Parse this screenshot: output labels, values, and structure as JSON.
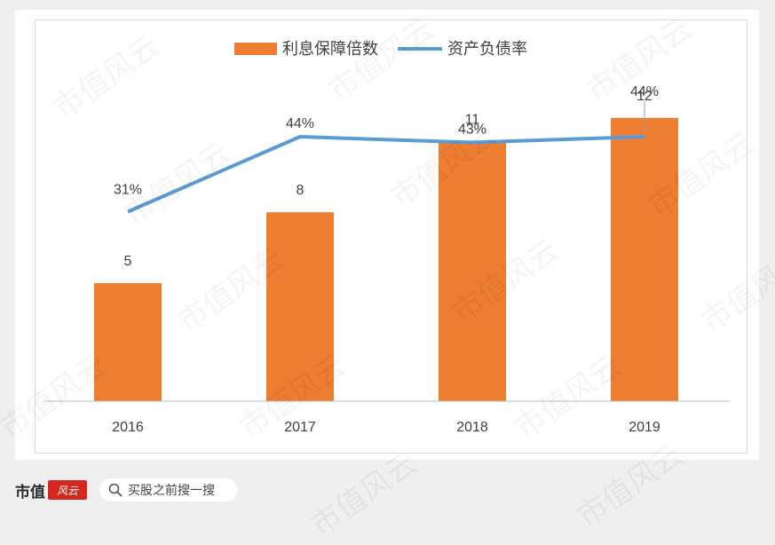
{
  "footer": {
    "brand": "市值",
    "brand_logo": "风云",
    "search_placeholder": "买股之前搜一搜",
    "search_icon": "search-icon"
  },
  "watermark": "市值风云",
  "colors": {
    "bar": "#ed7d31",
    "line": "#5b9bd5",
    "axis": "#bfbfbf",
    "text": "#404040"
  },
  "chart_data": {
    "type": "bar",
    "categories": [
      "2016",
      "2017",
      "2018",
      "2019"
    ],
    "series": [
      {
        "name": "利息保障倍数",
        "kind": "bar",
        "values": [
          5,
          8,
          11,
          12
        ],
        "labels": [
          "5",
          "8",
          "11",
          "12"
        ]
      },
      {
        "name": "资产负债率",
        "kind": "line",
        "values": [
          31,
          44,
          43,
          44
        ],
        "labels": [
          "31%",
          "44%",
          "43%",
          "44%"
        ]
      }
    ],
    "legend": "top-center",
    "grid": false
  }
}
